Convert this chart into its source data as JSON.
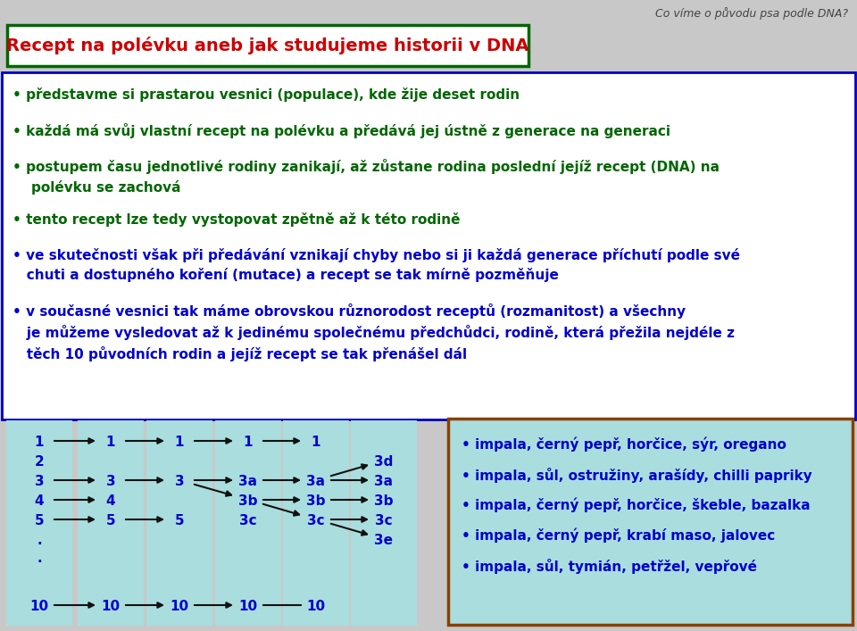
{
  "bg_color": "#c8c8c8",
  "title_text": "Recept na polévku aneb jak studujeme historii v DNA",
  "title_color": "#cc0000",
  "title_box_border": "#006600",
  "title_box_bg": "#ffffff",
  "corner_text": "Co víme o původu psa podle DNA?",
  "main_box_border": "#0000bb",
  "main_box_bg": "#ffffff",
  "bullet_color_green": "#006600",
  "bullet_color_blue": "#0000cc",
  "bullets_green": [
    "• představme si prastarou vesnici (populace), kde žije deset rodin",
    "• každá má svůj vlastní recept na polévku a předává jej ústně z generace na generaci",
    "• postupem času jednotlivé rodiny zanikají, až zůstane rodina poslední jejíž recept (DNA) na\n    polévku se zachová",
    "• tento recept lze tedy vystopovat zpětně až k této rodině"
  ],
  "bullets_blue": [
    "• ve skutečnosti však při předávání vznikají chyby nebo si ji každá generace příchutí podle své\n   chuti a dostupného koření (mutace) a recept se tak mírně pozměňuje",
    "• v současné vesnici tak máme obrovskou různorodost receptů (rozmanitost) a všechny\n   je můžeme vysledovat až k jedinému společnému předchůdci, rodině, která přežila nejdéle z\n   těch 10 původních rodin a jejíž recept se tak přenášel dál"
  ],
  "diagram_bg": "#aadddd",
  "recipe_box_bg": "#aadddd",
  "recipe_box_border": "#8b4000",
  "recipes": [
    "• impala, černý pepř, horčice, sýr, oregano",
    "• impala, sůl, ostružiny, arašídy, chilli papriky",
    "• impala, černý pepř, horčice, škeble, bazalka",
    "• impala, černý pepř, krabí maso, jalovec",
    "• impala, sůl, tymián, petřžel, vepřové"
  ]
}
